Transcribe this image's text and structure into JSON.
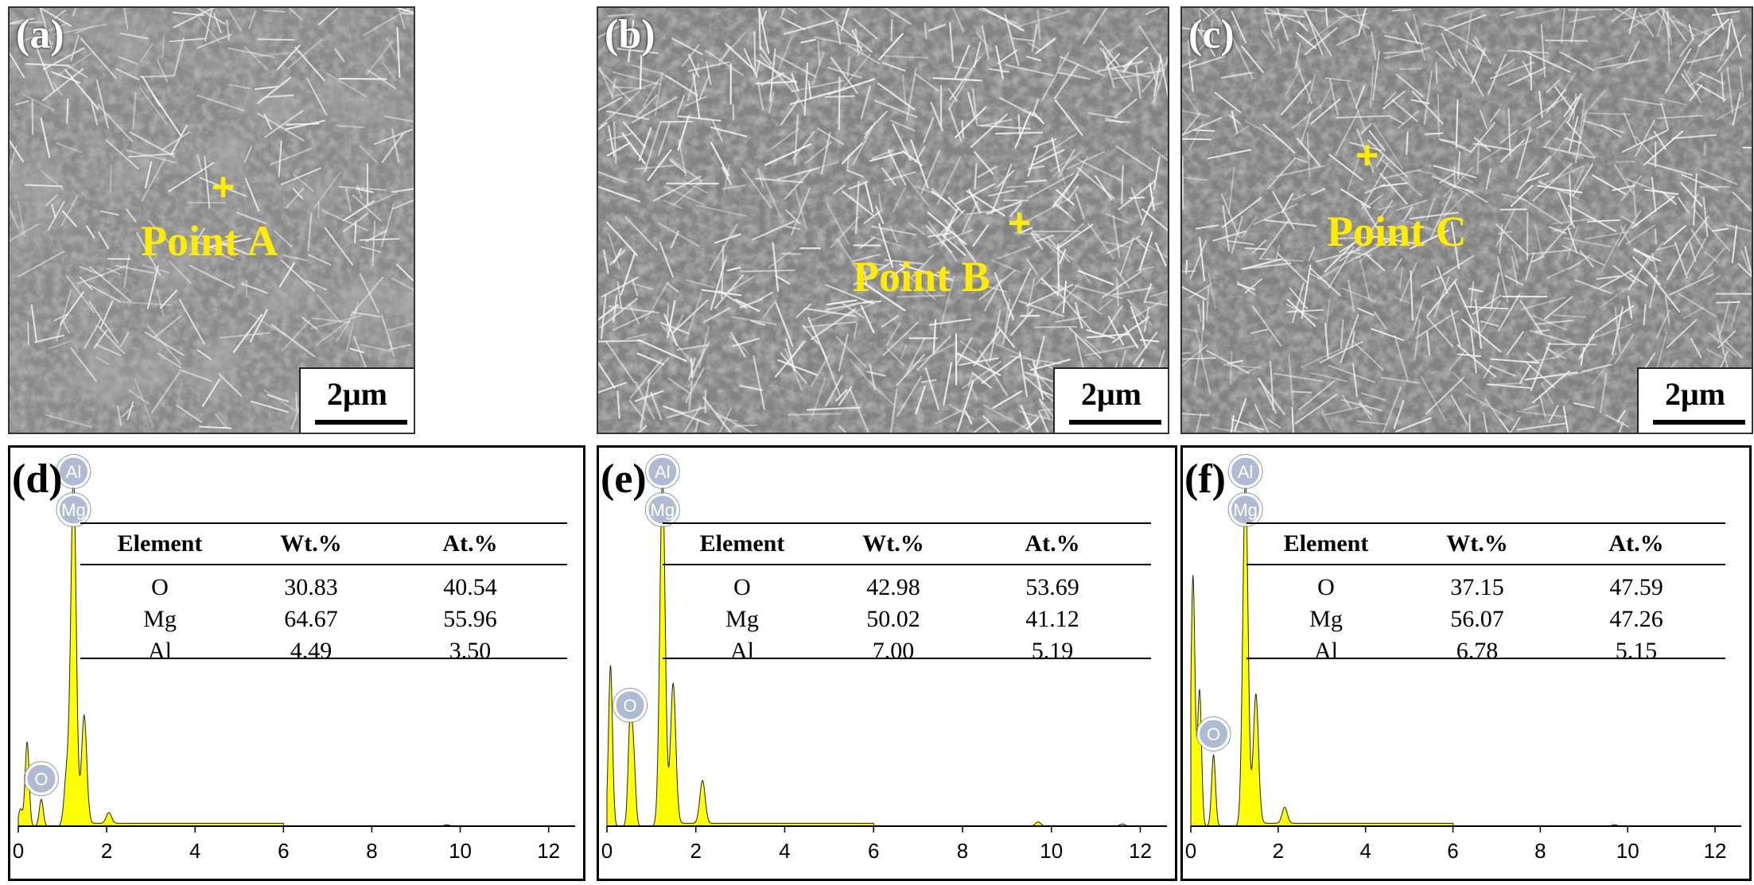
{
  "colors": {
    "marker": "#ffec00",
    "spectrum": "#ffff00",
    "spectrum_edge": "#222222",
    "badge": "#aebbd2"
  },
  "sem_panels": [
    {
      "label": "(a)",
      "point": "Point A",
      "scale": "2μm"
    },
    {
      "label": "(b)",
      "point": "Point B",
      "scale": "2μm"
    },
    {
      "label": "(c)",
      "point": "Point C",
      "scale": "2μm"
    }
  ],
  "eds_panels": [
    {
      "label": "(d)",
      "peak_labels": [
        "Al",
        "Mg",
        "O"
      ],
      "table": {
        "headers": [
          "Element",
          "Wt.%",
          "At.%"
        ],
        "rows": [
          [
            "O",
            "30.83",
            "40.54"
          ],
          [
            "Mg",
            "64.67",
            "55.96"
          ],
          [
            "Al",
            "4.49",
            "3.50"
          ]
        ]
      },
      "x_ticks": [
        "0",
        "2",
        "4",
        "6",
        "8",
        "10",
        "12"
      ]
    },
    {
      "label": "(e)",
      "peak_labels": [
        "Al",
        "Mg",
        "O"
      ],
      "table": {
        "headers": [
          "Element",
          "Wt.%",
          "At.%"
        ],
        "rows": [
          [
            "O",
            "42.98",
            "53.69"
          ],
          [
            "Mg",
            "50.02",
            "41.12"
          ],
          [
            "Al",
            "7.00",
            "5.19"
          ]
        ]
      },
      "x_ticks": [
        "0",
        "2",
        "4",
        "6",
        "8",
        "10",
        "12"
      ]
    },
    {
      "label": "(f)",
      "peak_labels": [
        "Al",
        "Mg",
        "O"
      ],
      "table": {
        "headers": [
          "Element",
          "Wt.%",
          "At.%"
        ],
        "rows": [
          [
            "O",
            "37.15",
            "47.59"
          ],
          [
            "Mg",
            "56.07",
            "47.26"
          ],
          [
            "Al",
            "6.78",
            "5.15"
          ]
        ]
      },
      "x_ticks": [
        "0",
        "2",
        "4",
        "6",
        "8",
        "10",
        "12"
      ]
    }
  ],
  "chart_data": [
    {
      "type": "area",
      "panel": "(d)",
      "xlim": [
        0,
        12.6
      ],
      "series": [
        {
          "x": [
            0.05,
            0.2,
            0.52,
            1.1,
            1.25,
            1.49,
            2.05,
            9.7
          ],
          "values": [
            4.8,
            23.6,
            7.5,
            15,
            98,
            31,
            3,
            0.4
          ]
        }
      ]
    },
    {
      "type": "area",
      "panel": "(e)",
      "xlim": [
        0,
        12.6
      ],
      "series": [
        {
          "x": [
            0.08,
            0.52,
            0.6,
            1.25,
            1.49,
            2.15,
            9.7,
            11.6
          ],
          "values": [
            45,
            28,
            18,
            98,
            40,
            12,
            1.2,
            0.6
          ]
        }
      ]
    },
    {
      "type": "area",
      "panel": "(f)",
      "xlim": [
        0,
        12.6
      ],
      "series": [
        {
          "x": [
            0.05,
            0.2,
            0.52,
            1.25,
            1.49,
            2.15,
            9.7
          ],
          "values": [
            70,
            38,
            20,
            98,
            37,
            4.5,
            0.4
          ]
        }
      ]
    }
  ]
}
